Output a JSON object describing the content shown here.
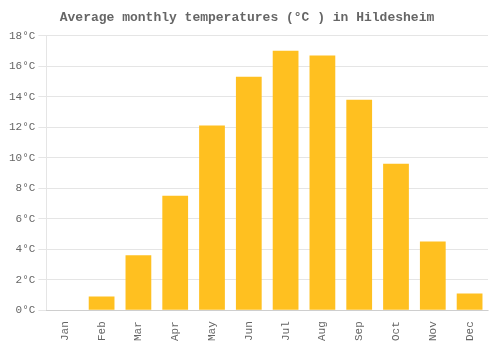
{
  "chart_data": {
    "type": "bar",
    "title": "Average monthly temperatures (°C ) in Hildesheim",
    "categories": [
      "Jan",
      "Feb",
      "Mar",
      "Apr",
      "May",
      "Jun",
      "Jul",
      "Aug",
      "Sep",
      "Oct",
      "Nov",
      "Dec"
    ],
    "values": [
      0.0,
      0.9,
      3.6,
      7.5,
      12.1,
      15.3,
      17.0,
      16.7,
      13.8,
      9.6,
      4.5,
      1.1
    ],
    "color": "#FFC020",
    "ylim": [
      0,
      18
    ],
    "yticks": [
      {
        "value": 0,
        "label": "0°C"
      },
      {
        "value": 2,
        "label": "2°C"
      },
      {
        "value": 4,
        "label": "4°C"
      },
      {
        "value": 6,
        "label": "6°C"
      },
      {
        "value": 8,
        "label": "8°C"
      },
      {
        "value": 10,
        "label": "10°C"
      },
      {
        "value": 12,
        "label": "12°C"
      },
      {
        "value": 14,
        "label": "14°C"
      },
      {
        "value": 16,
        "label": "16°C"
      },
      {
        "value": 18,
        "label": "18°C"
      }
    ],
    "grid": true
  }
}
